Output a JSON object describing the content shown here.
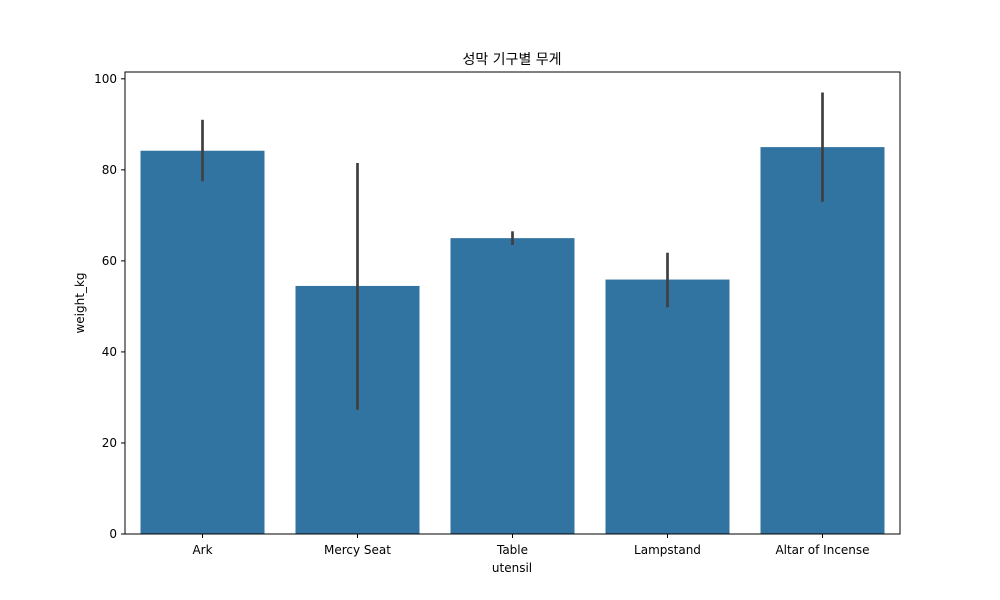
{
  "chart_data": {
    "type": "bar",
    "title": "성막 기구별 무게",
    "xlabel": "utensil",
    "ylabel": "weight_kg",
    "categories": [
      "Ark",
      "Mercy Seat",
      "Table",
      "Lampstand",
      "Altar of Incense"
    ],
    "values": [
      84.2,
      54.5,
      65.0,
      55.9,
      85.0
    ],
    "error_bars": [
      [
        77.5,
        91.0
      ],
      [
        27.3,
        81.5
      ],
      [
        63.5,
        66.5
      ],
      [
        49.8,
        61.8
      ],
      [
        73.0,
        97.0
      ]
    ],
    "ylim": [
      0,
      101.5
    ],
    "yticks": [
      0,
      20,
      40,
      60,
      80,
      100
    ],
    "grid": false,
    "colors": {
      "bar": "#3274a1",
      "error_bar": "#3f3f3f"
    }
  }
}
